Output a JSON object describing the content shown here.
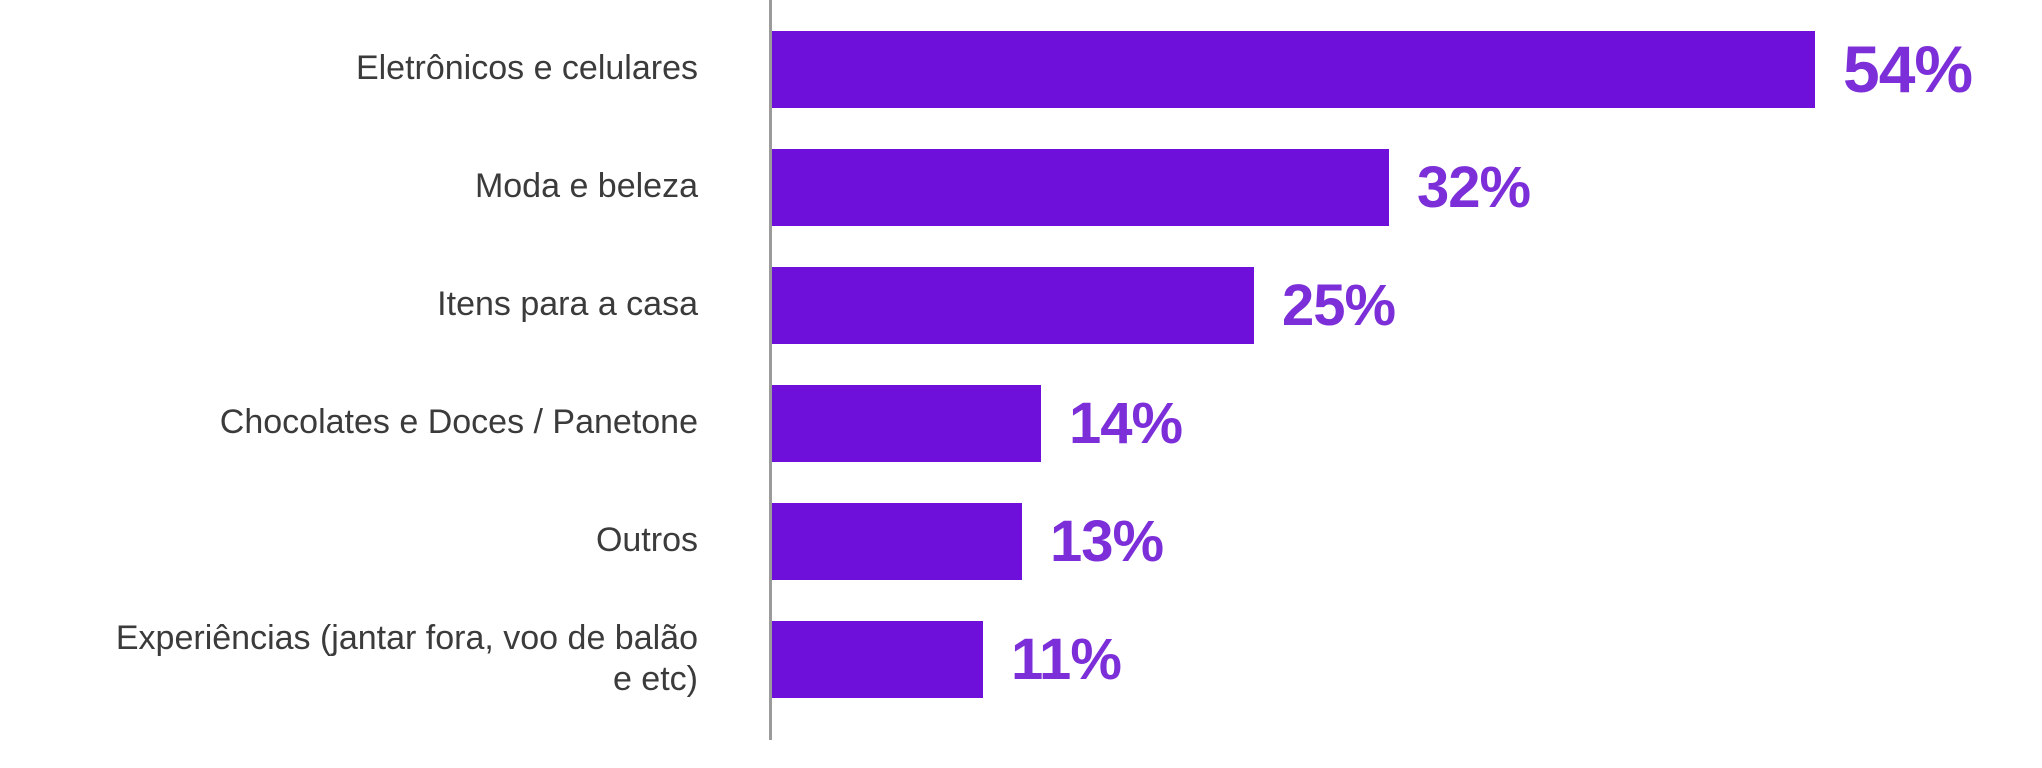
{
  "chart_data": {
    "type": "bar",
    "orientation": "horizontal",
    "title": "",
    "xlabel": "",
    "ylabel": "",
    "categories": [
      "Eletrônicos e celulares",
      "Moda e beleza",
      "Itens para a casa",
      "Chocolates e Doces / Panetone",
      "Outros",
      "Experiências (jantar fora, voo de balão\ne etc)"
    ],
    "values": [
      54,
      32,
      25,
      14,
      13,
      11
    ],
    "value_labels": [
      "54%",
      "32%",
      "25%",
      "14%",
      "13%",
      "11%"
    ],
    "xlim": [
      0,
      60
    ],
    "grid": false,
    "legend": false,
    "bar_color": "#6e10d9",
    "value_label_color": "#7c2fd8",
    "category_label_color": "#3b3b3b",
    "axis_line_color": "#9b9b9b"
  }
}
